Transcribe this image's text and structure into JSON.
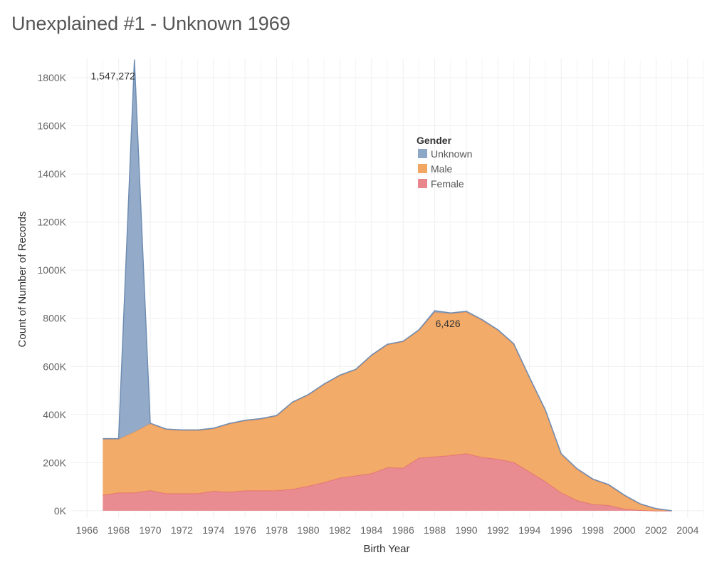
{
  "title": "Unexplained #1 - Unknown 1969",
  "chart_data": {
    "type": "area",
    "stacked": true,
    "xlabel": "Birth Year",
    "ylabel": "Count of Number of Records",
    "xlim": [
      1965,
      2005
    ],
    "ylim": [
      -30000,
      1880000
    ],
    "x_ticks": [
      1966,
      1968,
      1970,
      1972,
      1974,
      1976,
      1978,
      1980,
      1982,
      1984,
      1986,
      1988,
      1990,
      1992,
      1994,
      1996,
      1998,
      2000,
      2002,
      2004
    ],
    "y_ticks": [
      0,
      200000,
      400000,
      600000,
      800000,
      1000000,
      1200000,
      1400000,
      1600000,
      1800000
    ],
    "y_tick_labels": [
      "0K",
      "200K",
      "400K",
      "600K",
      "800K",
      "1000K",
      "1200K",
      "1400K",
      "1600K",
      "1800K"
    ],
    "x": [
      1967,
      1968,
      1969,
      1970,
      1971,
      1972,
      1973,
      1974,
      1975,
      1976,
      1977,
      1978,
      1979,
      1980,
      1981,
      1982,
      1983,
      1984,
      1985,
      1986,
      1987,
      1988,
      1989,
      1990,
      1991,
      1992,
      1993,
      1994,
      1995,
      1996,
      1997,
      1998,
      1999,
      2000,
      2001,
      2002,
      2003
    ],
    "series": [
      {
        "name": "Female",
        "color": "#E8868B",
        "values": [
          65000,
          75000,
          75000,
          85000,
          72000,
          72000,
          72000,
          82000,
          78000,
          84000,
          84000,
          84000,
          90000,
          103000,
          118000,
          137000,
          146000,
          155000,
          180000,
          178000,
          220000,
          225000,
          230000,
          238000,
          222000,
          215000,
          202000,
          162000,
          122000,
          75000,
          43000,
          27000,
          23000,
          8000,
          2000,
          0,
          0
        ]
      },
      {
        "name": "Male",
        "color": "#F2A661",
        "values": [
          233000,
          223000,
          253000,
          277000,
          266000,
          262000,
          262000,
          259000,
          283000,
          290000,
          297000,
          310000,
          360000,
          378000,
          407000,
          425000,
          440000,
          490000,
          510000,
          525000,
          530000,
          600000,
          590000,
          588000,
          570000,
          535000,
          490000,
          390000,
          295000,
          160000,
          130000,
          103000,
          84000,
          55000,
          25000,
          7000,
          0
        ]
      },
      {
        "name": "Unknown",
        "color": "#8DA7C6",
        "values": [
          2000,
          2000,
          1547272,
          2000,
          2000,
          2000,
          2000,
          2000,
          2000,
          2000,
          2000,
          2000,
          2000,
          2000,
          2000,
          2000,
          2000,
          2000,
          2000,
          2000,
          2000,
          6426,
          2000,
          3000,
          2000,
          2000,
          2000,
          2000,
          2000,
          2000,
          2000,
          2000,
          2000,
          2000,
          2000,
          2000,
          0
        ]
      }
    ],
    "annotations": [
      {
        "text": "1,547,272",
        "x": 1969,
        "series": "Unknown"
      },
      {
        "text": "6,426",
        "x": 1988,
        "series": "Unknown"
      }
    ],
    "legend": {
      "title": "Gender",
      "placement": "top-center",
      "items": [
        {
          "label": "Unknown",
          "color": "#8DA7C6"
        },
        {
          "label": "Male",
          "color": "#F2A661"
        },
        {
          "label": "Female",
          "color": "#E8868B"
        }
      ]
    },
    "grid": true
  }
}
